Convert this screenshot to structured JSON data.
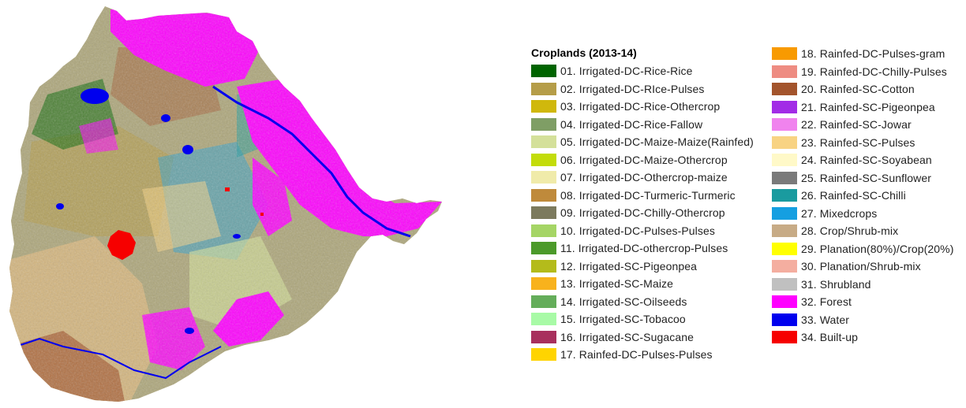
{
  "legend": {
    "title": "Croplands (2013-14)",
    "items": [
      {
        "label": "01. Irrigated-DC-Rice-Rice",
        "color": "#006400"
      },
      {
        "label": "02. Irrigated-DC-RIce-Pulses",
        "color": "#b59d48"
      },
      {
        "label": "03. Irrigated-DC-Rice-Othercrop",
        "color": "#d0b80c"
      },
      {
        "label": "04. Irrigated-DC-Rice-Fallow",
        "color": "#7f9e65"
      },
      {
        "label": "05. Irrigated-DC-Maize-Maize(Rainfed)",
        "color": "#d4e09a"
      },
      {
        "label": "06. Irrigated-DC-Maize-Othercrop",
        "color": "#c3dc0a"
      },
      {
        "label": "07. Irrigated-DC-Othercrop-maize",
        "color": "#f0ebaa"
      },
      {
        "label": "08. Irrigated-DC-Turmeric-Turmeric",
        "color": "#bf8a3b"
      },
      {
        "label": "09. Irrigated-DC-Chilly-Othercrop",
        "color": "#7c7a5d"
      },
      {
        "label": "10. Irrigated-DC-Pulses-Pulses",
        "color": "#a5d565"
      },
      {
        "label": "11. Irrigated-DC-othercrop-Pulses",
        "color": "#4c9a2a"
      },
      {
        "label": "12. Irrigated-SC-Pigeonpea",
        "color": "#b4bb1b"
      },
      {
        "label": "13. Irrigated-SC-Maize",
        "color": "#f8b21c"
      },
      {
        "label": "14. Irrigated-SC-Oilseeds",
        "color": "#64ad5a"
      },
      {
        "label": "15. Irrigated-SC-Tobacoo",
        "color": "#a8faa6"
      },
      {
        "label": "16. Irrigated-SC-Sugacane",
        "color": "#a8305d"
      },
      {
        "label": "17. Rainfed-DC-Pulses-Pulses",
        "color": "#ffd400"
      },
      {
        "label": "18. Rainfed-DC-Pulses-gram",
        "color": "#f89a00"
      },
      {
        "label": "19. Rainfed-DC-Chilly-Pulses",
        "color": "#ee8c82"
      },
      {
        "label": "20. Rainfed-SC-Cotton",
        "color": "#a3542c"
      },
      {
        "label": "21. Rainfed-SC-Pigeonpea",
        "color": "#a22ce6"
      },
      {
        "label": "22. Rainfed-SC-Jowar",
        "color": "#f083ee"
      },
      {
        "label": "23. Rainfed-SC-Pulses",
        "color": "#f8d383"
      },
      {
        "label": "24. Rainfed-SC-Soyabean",
        "color": "#fff9c8"
      },
      {
        "label": "25. Rainfed-SC-Sunflower",
        "color": "#7a7a7a"
      },
      {
        "label": "26. Rainfed-SC-Chilli",
        "color": "#1a9b9f"
      },
      {
        "label": "27. Mixedcrops",
        "color": "#159fe1"
      },
      {
        "label": "28. Crop/Shrub-mix",
        "color": "#c7ab86"
      },
      {
        "label": "29. Planation(80%)/Crop(20%)",
        "color": "#ffff00"
      },
      {
        "label": "30. Planation/Shrub-mix",
        "color": "#f4aea0"
      },
      {
        "label": "31. Shrubland",
        "color": "#c0c0c0"
      },
      {
        "label": "32. Forest",
        "color": "#ff00ff"
      },
      {
        "label": "33. Water",
        "color": "#0000ee"
      },
      {
        "label": "34. Built-up",
        "color": "#f60000"
      }
    ]
  }
}
